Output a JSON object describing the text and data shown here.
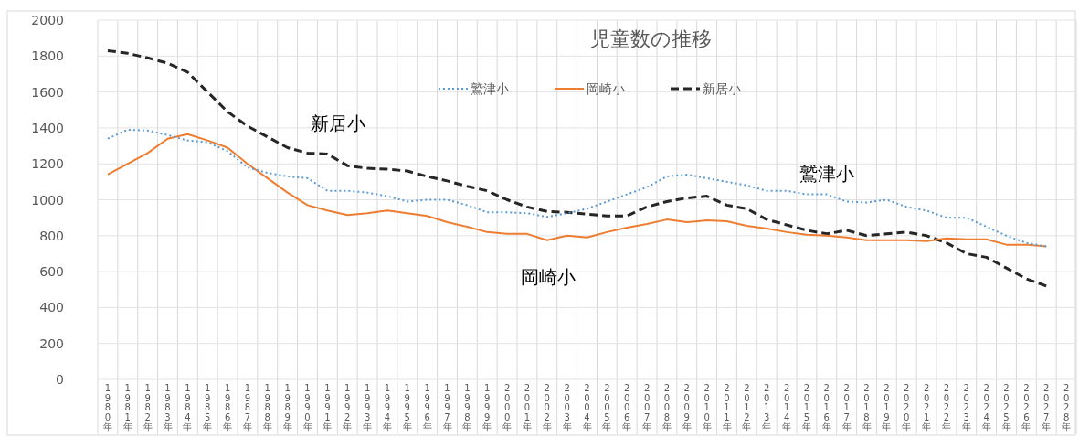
{
  "chart_data": {
    "type": "line",
    "title": "児童数の推移",
    "categories": [
      "1980年",
      "1981年",
      "1982年",
      "1983年",
      "1984年",
      "1985年",
      "1986年",
      "1987年",
      "1988年",
      "1989年",
      "1990年",
      "1991年",
      "1992年",
      "1993年",
      "1994年",
      "1995年",
      "1996年",
      "1997年",
      "1998年",
      "1999年",
      "2000年",
      "2001年",
      "2002年",
      "2003年",
      "2004年",
      "2005年",
      "2006年",
      "2007年",
      "2008年",
      "2009年",
      "2010年",
      "2011年",
      "2012年",
      "2013年",
      "2014年",
      "2015年",
      "2016年",
      "2017年",
      "2018年",
      "2019年",
      "2020年",
      "2021年",
      "2022年",
      "2023年",
      "2024年",
      "2025年",
      "2026年",
      "2027年",
      "2028年"
    ],
    "series": [
      {
        "name": "鷲津小",
        "color": "#5b9bd5",
        "line_style": "dotted",
        "values": [
          1340,
          1390,
          1385,
          1360,
          1330,
          1320,
          1270,
          1180,
          1150,
          1130,
          1120,
          1050,
          1050,
          1040,
          1020,
          990,
          1000,
          1000,
          970,
          930,
          930,
          925,
          905,
          925,
          950,
          990,
          1030,
          1070,
          1130,
          1140,
          1120,
          1100,
          1080,
          1050,
          1050,
          1030,
          1030,
          990,
          985,
          1000,
          960,
          940,
          900,
          900,
          850,
          800,
          760,
          740,
          null
        ]
      },
      {
        "name": "岡崎小",
        "color": "#ed7d31",
        "line_style": "solid",
        "values": [
          1140,
          1200,
          1260,
          1340,
          1365,
          1330,
          1290,
          1200,
          1120,
          1040,
          970,
          940,
          915,
          925,
          940,
          925,
          910,
          875,
          850,
          820,
          810,
          810,
          775,
          800,
          790,
          820,
          845,
          865,
          890,
          875,
          885,
          880,
          855,
          840,
          820,
          805,
          800,
          790,
          775,
          775,
          775,
          770,
          785,
          780,
          780,
          750,
          750,
          740,
          null
        ]
      },
      {
        "name": "新居小",
        "color": "#262626",
        "line_style": "dashed",
        "values": [
          1830,
          1815,
          1790,
          1760,
          1710,
          1600,
          1490,
          1410,
          1350,
          1290,
          1260,
          1255,
          1190,
          1175,
          1170,
          1160,
          1130,
          1105,
          1075,
          1050,
          1000,
          960,
          935,
          930,
          920,
          910,
          910,
          960,
          990,
          1010,
          1020,
          970,
          950,
          890,
          860,
          830,
          810,
          830,
          800,
          810,
          820,
          800,
          760,
          700,
          680,
          620,
          560,
          520,
          null
        ]
      }
    ],
    "ylim": [
      0,
      2000
    ],
    "yticks": [
      0,
      200,
      400,
      600,
      800,
      1000,
      1200,
      1400,
      1600,
      1800,
      2000
    ],
    "grid": true,
    "legend": "top",
    "marker": "none",
    "annotations": [
      "新居小",
      "鷲津小",
      "岡崎小"
    ]
  }
}
